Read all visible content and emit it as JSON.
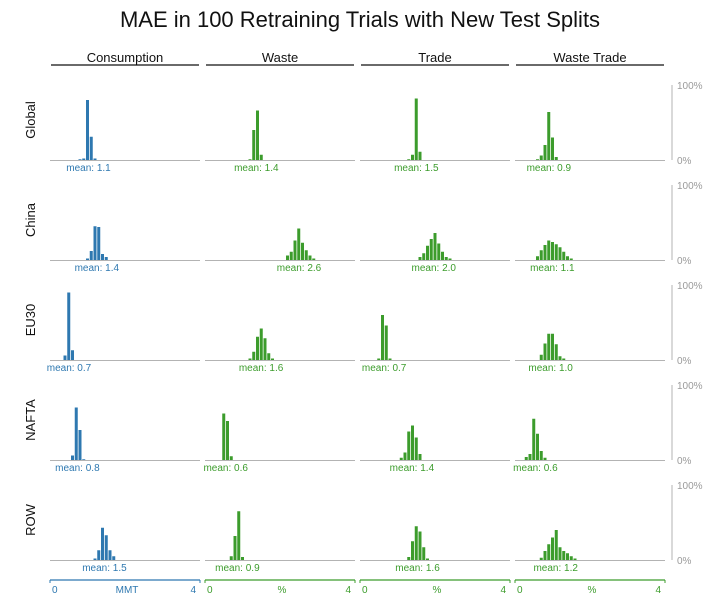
{
  "chart_data": {
    "type": "bar",
    "title": "MAE in 100 Retraining Trials with New Test Splits",
    "columns": [
      "Consumption",
      "Waste",
      "Trade",
      "Waste Trade"
    ],
    "rows": [
      "Global",
      "China",
      "EU30",
      "NAFTA",
      "ROW"
    ],
    "x_range": [
      0,
      4
    ],
    "x_axis": {
      "tick_labels": [
        "0",
        "4"
      ],
      "unit_labels": [
        "MMT",
        "%",
        "%",
        "%"
      ]
    },
    "y_range": [
      0,
      100
    ],
    "y_axis": {
      "tick_labels": [
        "100%",
        "0%"
      ]
    },
    "bin_width": 0.1,
    "colors": {
      "Consumption": "#2e78b0",
      "other": "#3c9c2c",
      "axis": "#b3b3b3",
      "title": "#111111"
    },
    "panels": [
      {
        "row": "Global",
        "column": "Consumption",
        "mean_label": "mean: 1.1",
        "bins": [
          {
            "x": 0.8,
            "y": 1
          },
          {
            "x": 0.9,
            "y": 2
          },
          {
            "x": 1.0,
            "y": 80
          },
          {
            "x": 1.1,
            "y": 31
          },
          {
            "x": 1.2,
            "y": 2
          }
        ]
      },
      {
        "row": "Global",
        "column": "Waste",
        "mean_label": "mean: 1.4",
        "bins": [
          {
            "x": 1.2,
            "y": 1
          },
          {
            "x": 1.3,
            "y": 40
          },
          {
            "x": 1.4,
            "y": 66
          },
          {
            "x": 1.5,
            "y": 7
          }
        ]
      },
      {
        "row": "Global",
        "column": "Trade",
        "mean_label": "mean: 1.5",
        "bins": [
          {
            "x": 1.3,
            "y": 1
          },
          {
            "x": 1.4,
            "y": 7
          },
          {
            "x": 1.5,
            "y": 82
          },
          {
            "x": 1.6,
            "y": 11
          }
        ]
      },
      {
        "row": "Global",
        "column": "Waste Trade",
        "mean_label": "mean: 0.9",
        "bins": [
          {
            "x": 0.6,
            "y": 1
          },
          {
            "x": 0.7,
            "y": 6
          },
          {
            "x": 0.8,
            "y": 20
          },
          {
            "x": 0.9,
            "y": 64
          },
          {
            "x": 1.0,
            "y": 30
          },
          {
            "x": 1.1,
            "y": 4
          }
        ]
      },
      {
        "row": "China",
        "column": "Consumption",
        "mean_label": "mean: 1.4",
        "bins": [
          {
            "x": 1.0,
            "y": 2
          },
          {
            "x": 1.1,
            "y": 12
          },
          {
            "x": 1.2,
            "y": 45
          },
          {
            "x": 1.3,
            "y": 44
          },
          {
            "x": 1.4,
            "y": 8
          },
          {
            "x": 1.5,
            "y": 4
          }
        ]
      },
      {
        "row": "China",
        "column": "Waste",
        "mean_label": "mean: 2.6",
        "bins": [
          {
            "x": 2.2,
            "y": 6
          },
          {
            "x": 2.3,
            "y": 11
          },
          {
            "x": 2.4,
            "y": 26
          },
          {
            "x": 2.5,
            "y": 42
          },
          {
            "x": 2.6,
            "y": 23
          },
          {
            "x": 2.7,
            "y": 13
          },
          {
            "x": 2.8,
            "y": 6
          },
          {
            "x": 2.9,
            "y": 2
          }
        ]
      },
      {
        "row": "China",
        "column": "Trade",
        "mean_label": "mean: 2.0",
        "bins": [
          {
            "x": 1.6,
            "y": 4
          },
          {
            "x": 1.7,
            "y": 9
          },
          {
            "x": 1.8,
            "y": 19
          },
          {
            "x": 1.9,
            "y": 28
          },
          {
            "x": 2.0,
            "y": 36
          },
          {
            "x": 2.1,
            "y": 22
          },
          {
            "x": 2.2,
            "y": 11
          },
          {
            "x": 2.3,
            "y": 4
          },
          {
            "x": 2.4,
            "y": 2
          }
        ]
      },
      {
        "row": "China",
        "column": "Waste Trade",
        "mean_label": "mean: 1.1",
        "bins": [
          {
            "x": 0.6,
            "y": 5
          },
          {
            "x": 0.7,
            "y": 13
          },
          {
            "x": 0.8,
            "y": 20
          },
          {
            "x": 0.9,
            "y": 26
          },
          {
            "x": 1.0,
            "y": 24
          },
          {
            "x": 1.1,
            "y": 21
          },
          {
            "x": 1.2,
            "y": 17
          },
          {
            "x": 1.3,
            "y": 11
          },
          {
            "x": 1.4,
            "y": 5
          },
          {
            "x": 1.5,
            "y": 2
          }
        ]
      },
      {
        "row": "EU30",
        "column": "Consumption",
        "mean_label": "mean: 0.7",
        "bins": [
          {
            "x": 0.4,
            "y": 6
          },
          {
            "x": 0.5,
            "y": 90
          },
          {
            "x": 0.6,
            "y": 13
          }
        ]
      },
      {
        "row": "EU30",
        "column": "Waste",
        "mean_label": "mean: 1.6",
        "bins": [
          {
            "x": 1.2,
            "y": 2
          },
          {
            "x": 1.3,
            "y": 11
          },
          {
            "x": 1.4,
            "y": 31
          },
          {
            "x": 1.5,
            "y": 42
          },
          {
            "x": 1.6,
            "y": 29
          },
          {
            "x": 1.7,
            "y": 9
          },
          {
            "x": 1.8,
            "y": 2
          }
        ]
      },
      {
        "row": "EU30",
        "column": "Trade",
        "mean_label": "mean: 0.7",
        "bins": [
          {
            "x": 0.5,
            "y": 2
          },
          {
            "x": 0.6,
            "y": 60
          },
          {
            "x": 0.7,
            "y": 46
          },
          {
            "x": 0.8,
            "y": 2
          }
        ]
      },
      {
        "row": "EU30",
        "column": "Waste Trade",
        "mean_label": "mean: 1.0",
        "bins": [
          {
            "x": 0.7,
            "y": 7
          },
          {
            "x": 0.8,
            "y": 22
          },
          {
            "x": 0.9,
            "y": 35
          },
          {
            "x": 1.0,
            "y": 35
          },
          {
            "x": 1.1,
            "y": 21
          },
          {
            "x": 1.2,
            "y": 5
          },
          {
            "x": 1.3,
            "y": 2
          }
        ]
      },
      {
        "row": "NAFTA",
        "column": "Consumption",
        "mean_label": "mean: 0.8",
        "bins": [
          {
            "x": 0.6,
            "y": 6
          },
          {
            "x": 0.7,
            "y": 70
          },
          {
            "x": 0.8,
            "y": 40
          },
          {
            "x": 0.9,
            "y": 1
          }
        ]
      },
      {
        "row": "NAFTA",
        "column": "Waste",
        "mean_label": "mean: 0.6",
        "bins": [
          {
            "x": 0.5,
            "y": 62
          },
          {
            "x": 0.6,
            "y": 52
          },
          {
            "x": 0.7,
            "y": 5
          }
        ]
      },
      {
        "row": "NAFTA",
        "column": "Trade",
        "mean_label": "mean: 1.4",
        "bins": [
          {
            "x": 1.1,
            "y": 3
          },
          {
            "x": 1.2,
            "y": 10
          },
          {
            "x": 1.3,
            "y": 38
          },
          {
            "x": 1.4,
            "y": 46
          },
          {
            "x": 1.5,
            "y": 30
          },
          {
            "x": 1.6,
            "y": 8
          }
        ]
      },
      {
        "row": "NAFTA",
        "column": "Waste Trade",
        "mean_label": "mean: 0.6",
        "bins": [
          {
            "x": 0.3,
            "y": 4
          },
          {
            "x": 0.4,
            "y": 8
          },
          {
            "x": 0.5,
            "y": 55
          },
          {
            "x": 0.6,
            "y": 35
          },
          {
            "x": 0.7,
            "y": 12
          },
          {
            "x": 0.8,
            "y": 3
          }
        ]
      },
      {
        "row": "ROW",
        "column": "Consumption",
        "mean_label": "mean: 1.5",
        "bins": [
          {
            "x": 1.2,
            "y": 2
          },
          {
            "x": 1.3,
            "y": 13
          },
          {
            "x": 1.4,
            "y": 43
          },
          {
            "x": 1.5,
            "y": 33
          },
          {
            "x": 1.6,
            "y": 13
          },
          {
            "x": 1.7,
            "y": 5
          }
        ]
      },
      {
        "row": "ROW",
        "column": "Waste",
        "mean_label": "mean: 0.9",
        "bins": [
          {
            "x": 0.7,
            "y": 5
          },
          {
            "x": 0.8,
            "y": 32
          },
          {
            "x": 0.9,
            "y": 65
          },
          {
            "x": 1.0,
            "y": 4
          }
        ]
      },
      {
        "row": "ROW",
        "column": "Trade",
        "mean_label": "mean: 1.6",
        "bins": [
          {
            "x": 1.3,
            "y": 4
          },
          {
            "x": 1.4,
            "y": 25
          },
          {
            "x": 1.5,
            "y": 45
          },
          {
            "x": 1.6,
            "y": 38
          },
          {
            "x": 1.7,
            "y": 17
          },
          {
            "x": 1.8,
            "y": 2
          }
        ]
      },
      {
        "row": "ROW",
        "column": "Waste Trade",
        "mean_label": "mean: 1.2",
        "bins": [
          {
            "x": 0.7,
            "y": 3
          },
          {
            "x": 0.8,
            "y": 12
          },
          {
            "x": 0.9,
            "y": 21
          },
          {
            "x": 1.0,
            "y": 30
          },
          {
            "x": 1.1,
            "y": 40
          },
          {
            "x": 1.2,
            "y": 17
          },
          {
            "x": 1.3,
            "y": 12
          },
          {
            "x": 1.4,
            "y": 9
          },
          {
            "x": 1.5,
            "y": 5
          },
          {
            "x": 1.6,
            "y": 2
          }
        ]
      }
    ]
  }
}
